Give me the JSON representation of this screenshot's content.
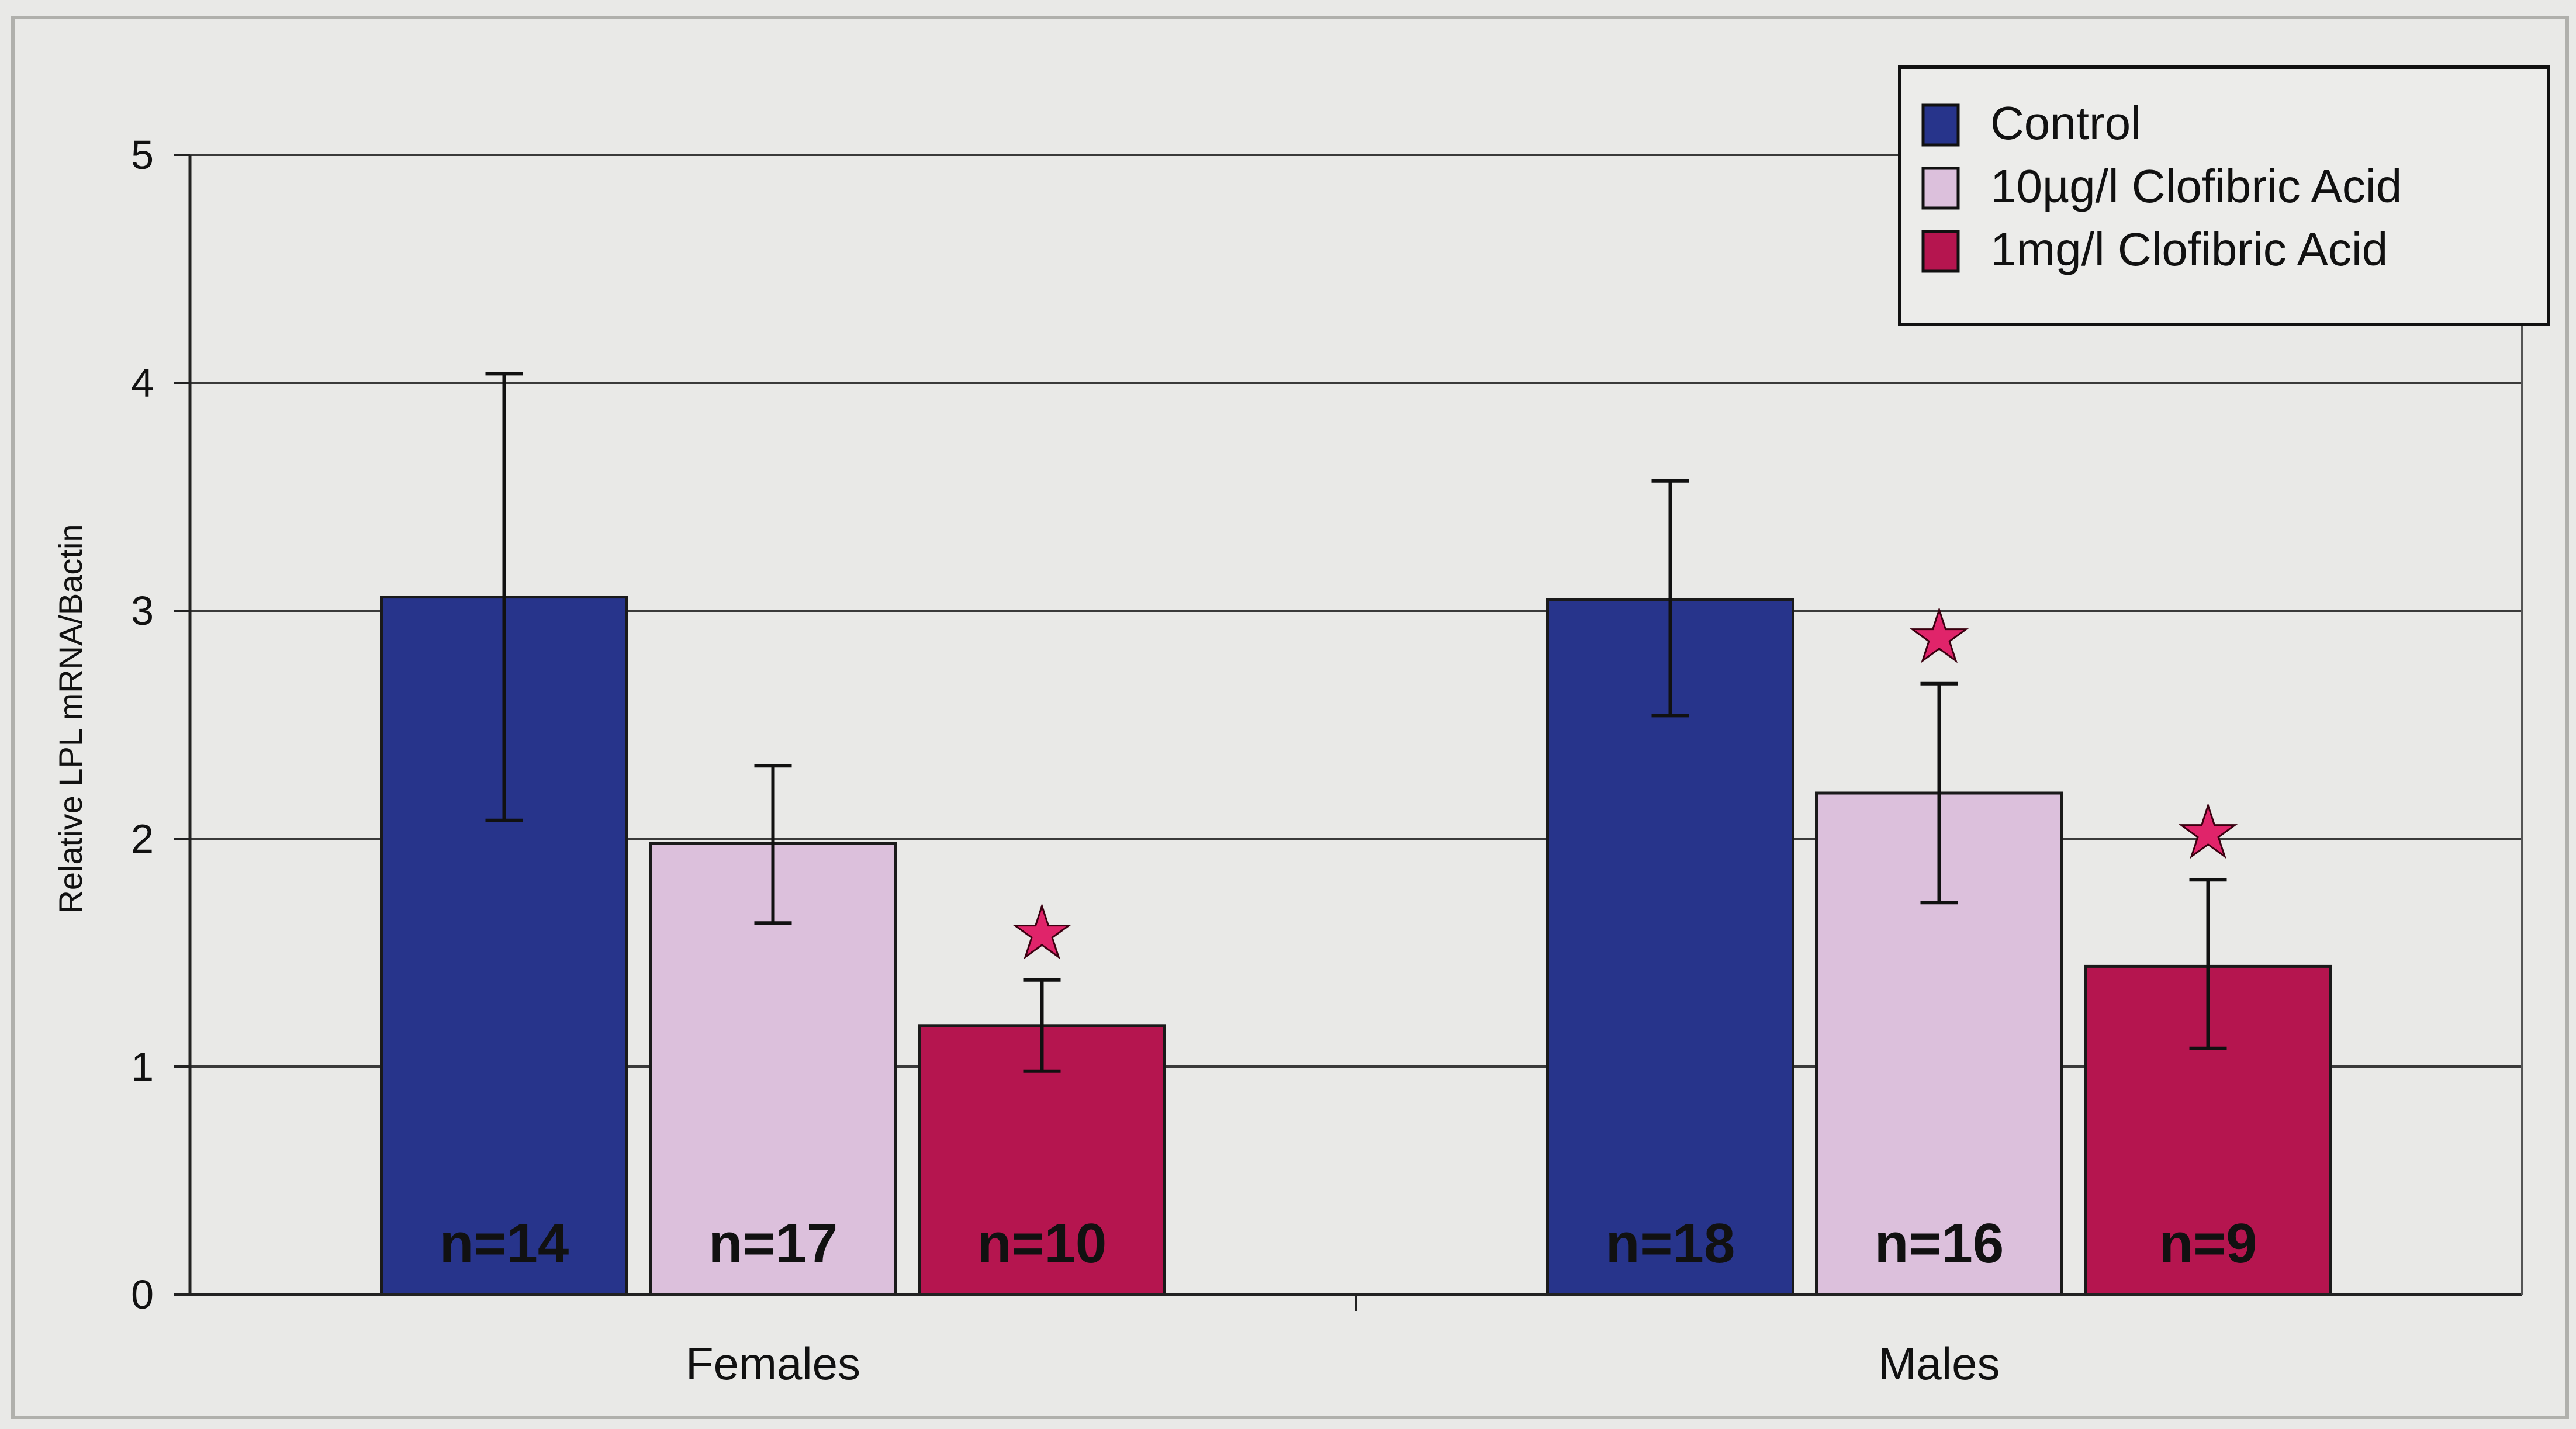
{
  "chart_data": {
    "type": "bar",
    "title": "",
    "xlabel": "",
    "ylabel": "Relative LPL mRNA/Bactin",
    "ylim": [
      0,
      5
    ],
    "yticks": [
      0,
      1,
      2,
      3,
      4,
      5
    ],
    "grid": true,
    "legend_position": "top-right",
    "categories": [
      "Females",
      "Males"
    ],
    "series": [
      {
        "name": "Control",
        "color": "#27348b",
        "values": [
          3.06,
          3.05
        ],
        "error_low": [
          2.08,
          2.54
        ],
        "error_high": [
          4.04,
          3.57
        ],
        "n_labels": [
          "n=14",
          "n=18"
        ],
        "significant": [
          false,
          false
        ]
      },
      {
        "name": "10µg/l Clofibric Acid",
        "color": "#dcc0dc",
        "values": [
          1.98,
          2.2
        ],
        "error_low": [
          1.63,
          1.72
        ],
        "error_high": [
          2.32,
          2.68
        ],
        "n_labels": [
          "n=17",
          "n=16"
        ],
        "significant": [
          false,
          true
        ]
      },
      {
        "name": "1mg/l Clofibric Acid",
        "color": "#b5154f",
        "values": [
          1.18,
          1.44
        ],
        "error_low": [
          0.98,
          1.08
        ],
        "error_high": [
          1.38,
          1.82
        ],
        "n_labels": [
          "n=10",
          "n=9"
        ],
        "significant": [
          true,
          true
        ]
      }
    ],
    "significance_marker": "★",
    "significance_color": "#e0246a"
  }
}
